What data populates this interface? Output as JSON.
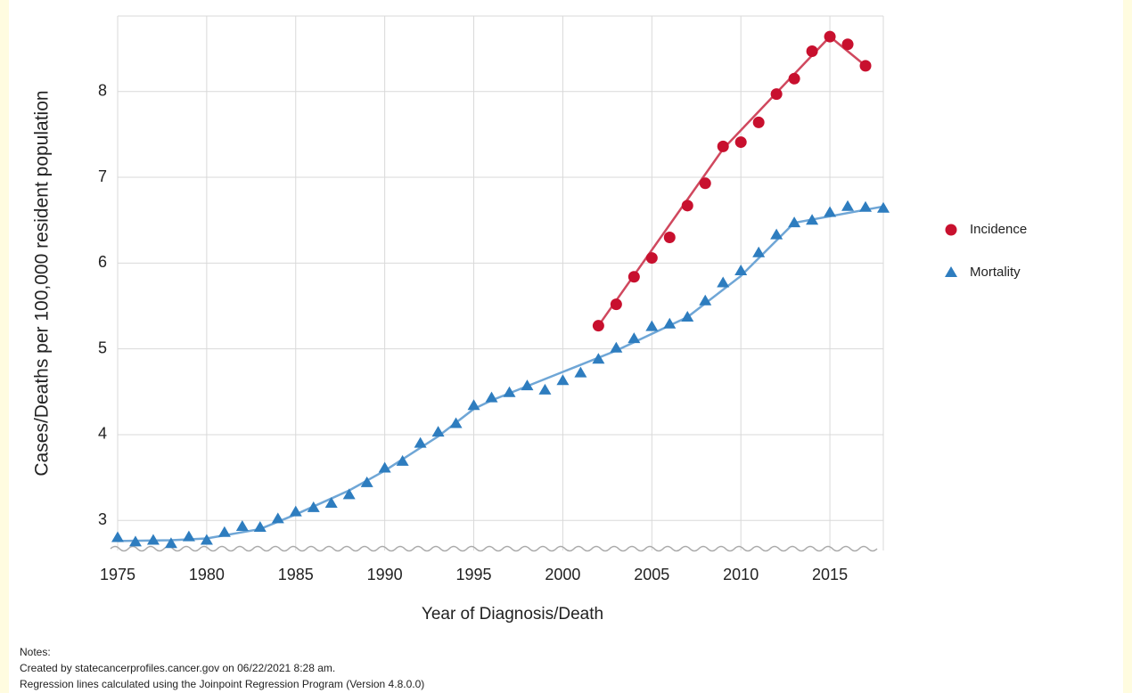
{
  "chart_data": {
    "type": "line",
    "x_label": "Year of Diagnosis/Death",
    "y_label": "Cases/Deaths per 100,000 resident population",
    "x": [
      1975,
      1976,
      1977,
      1978,
      1979,
      1980,
      1981,
      1982,
      1983,
      1984,
      1985,
      1986,
      1987,
      1988,
      1989,
      1990,
      1991,
      1992,
      1993,
      1994,
      1995,
      1996,
      1997,
      1998,
      1999,
      2000,
      2001,
      2002,
      2003,
      2004,
      2005,
      2006,
      2007,
      2008,
      2009,
      2010,
      2011,
      2012,
      2013,
      2014,
      2015,
      2016,
      2017,
      2018
    ],
    "series": [
      {
        "name": "Incidence",
        "color": "#c8102e",
        "line_color": "#d0485e",
        "marker": "circle",
        "values": [
          null,
          null,
          null,
          null,
          null,
          null,
          null,
          null,
          null,
          null,
          null,
          null,
          null,
          null,
          null,
          null,
          null,
          null,
          null,
          null,
          null,
          null,
          null,
          null,
          null,
          null,
          null,
          5.27,
          5.52,
          5.84,
          6.06,
          6.3,
          6.67,
          6.93,
          7.36,
          7.41,
          7.64,
          7.97,
          8.15,
          8.47,
          8.64,
          8.55,
          8.3,
          null
        ],
        "fit_x": [
          2002,
          2009,
          2015,
          2017
        ],
        "fit_values": [
          5.27,
          7.33,
          8.64,
          8.3
        ]
      },
      {
        "name": "Mortality",
        "color": "#2e7dbf",
        "line_color": "#6fa6d6",
        "marker": "triangle",
        "values": [
          2.8,
          2.75,
          2.77,
          2.73,
          2.81,
          2.77,
          2.86,
          2.93,
          2.92,
          3.02,
          3.1,
          3.15,
          3.2,
          3.3,
          3.44,
          3.61,
          3.69,
          3.9,
          4.03,
          4.13,
          4.34,
          4.43,
          4.49,
          4.57,
          4.52,
          4.63,
          4.72,
          4.88,
          5.01,
          5.12,
          5.26,
          5.29,
          5.37,
          5.56,
          5.77,
          5.91,
          6.12,
          6.33,
          6.47,
          6.5,
          6.59,
          6.66,
          6.65,
          6.64
        ],
        "fit_x": [
          1975,
          1978,
          1980,
          1983,
          1985,
          1988,
          1990,
          1993,
          1995,
          1996,
          2003,
          2007,
          2010,
          2013,
          2018
        ],
        "fit_values": [
          2.76,
          2.77,
          2.79,
          2.9,
          3.07,
          3.35,
          3.58,
          3.98,
          4.3,
          4.4,
          4.98,
          5.37,
          5.85,
          6.47,
          6.66
        ]
      }
    ],
    "xlim": [
      1975,
      2018
    ],
    "ylim": [
      2.65,
      8.88
    ],
    "xticks": [
      1975,
      1980,
      1985,
      1990,
      1995,
      2000,
      2005,
      2010,
      2015
    ],
    "yticks": [
      3,
      4,
      5,
      6,
      7,
      8
    ],
    "grid": true,
    "legend": "right",
    "notes": [
      "Notes:",
      "Created by statecancerprofiles.cancer.gov on 06/22/2021 8:28 am.",
      "Regression lines calculated using the Joinpoint Regression Program (Version 4.8.0.0)"
    ]
  }
}
